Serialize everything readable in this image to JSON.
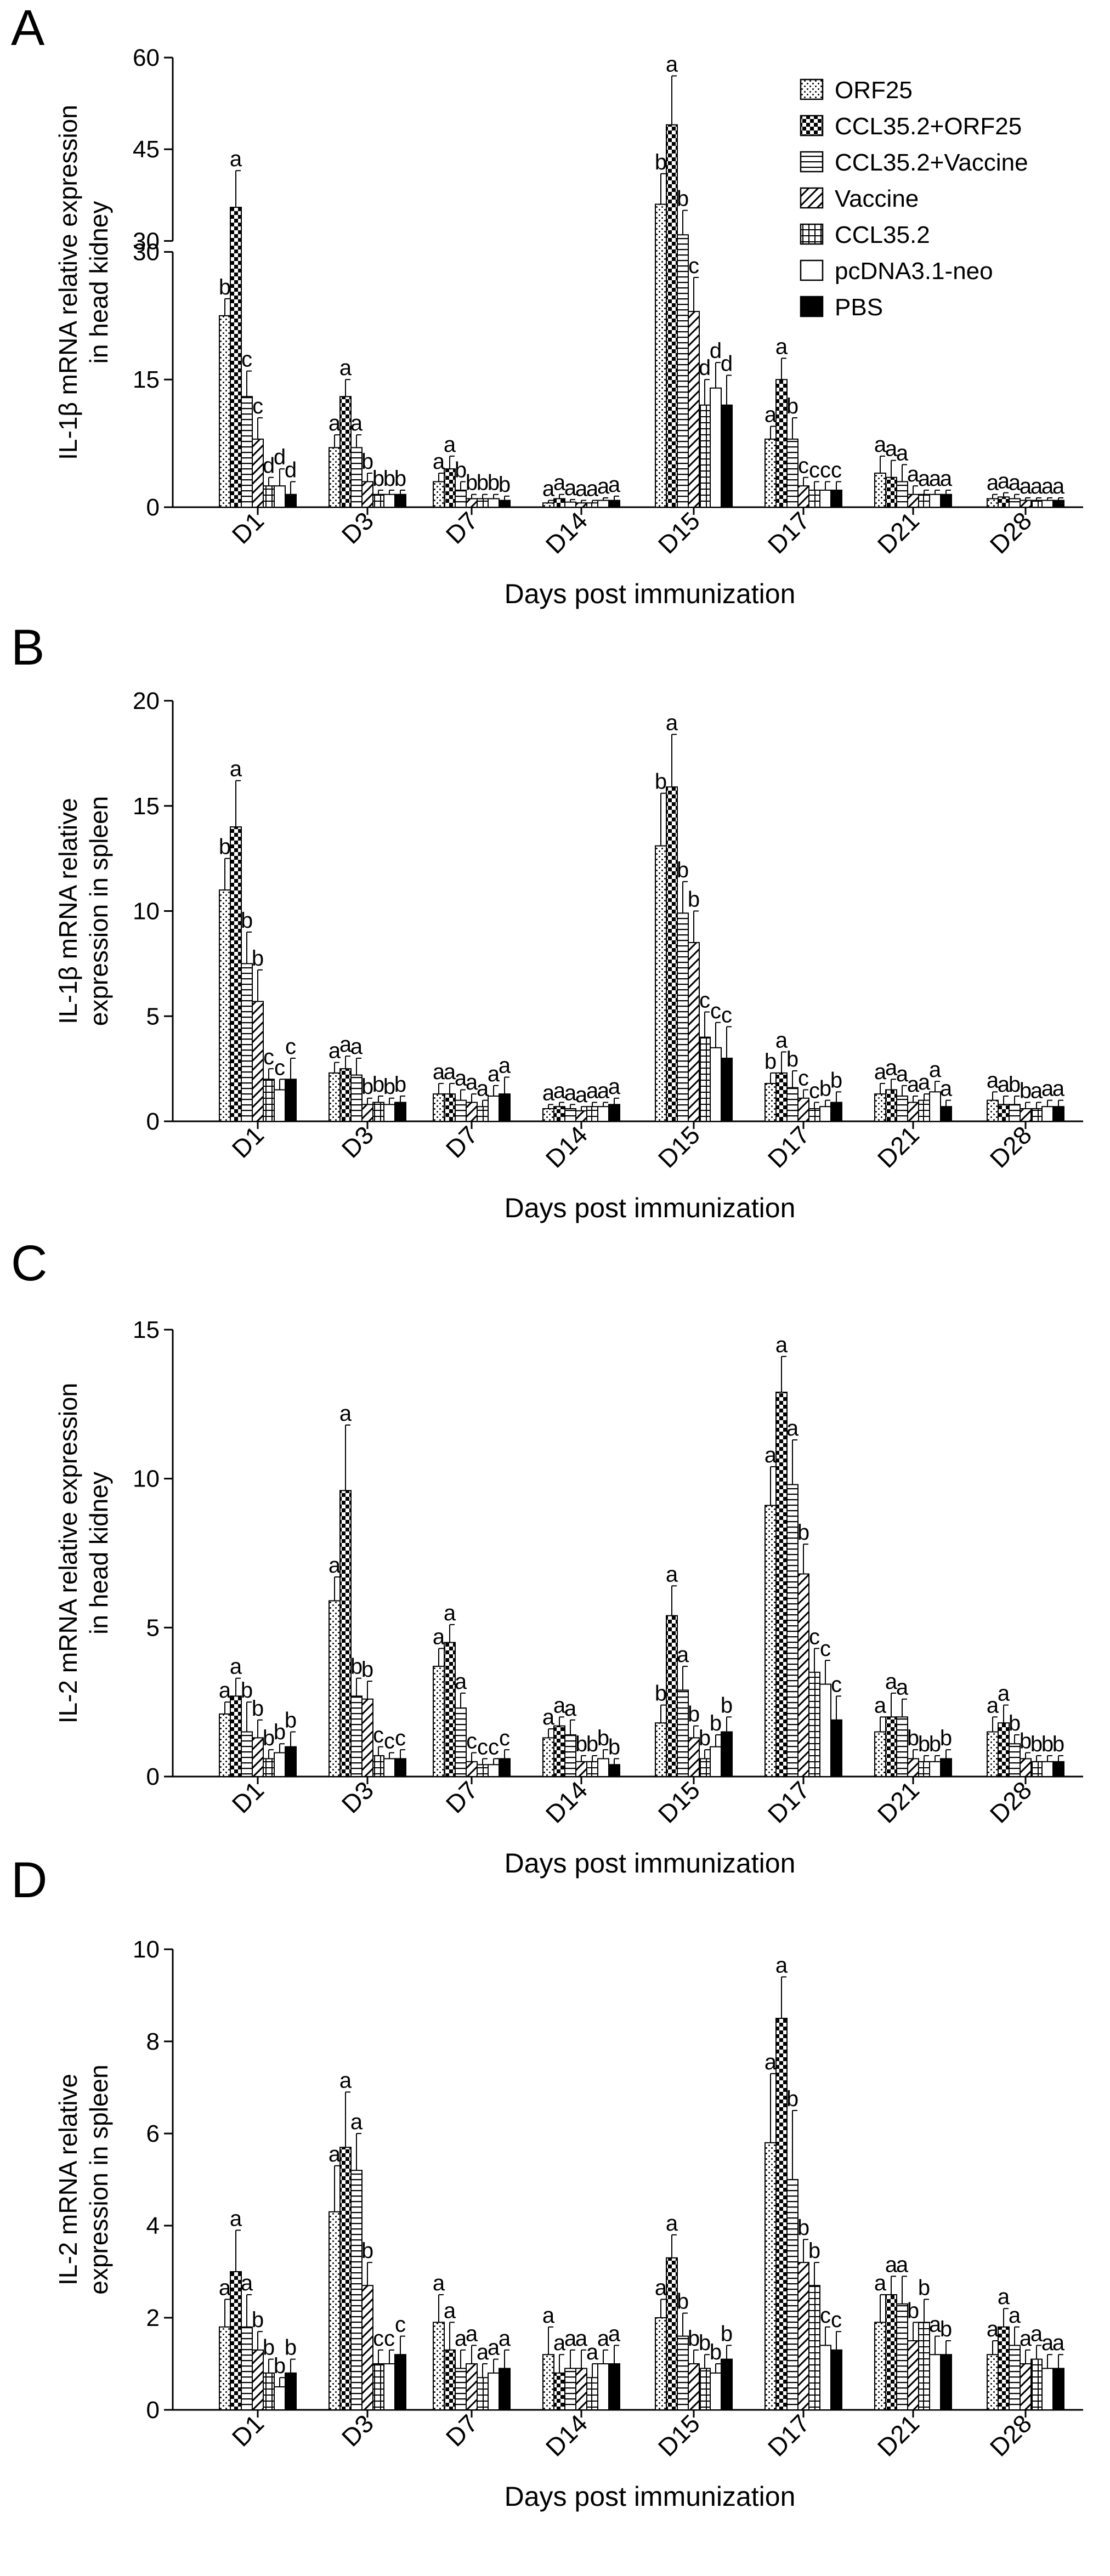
{
  "colors": {
    "ink": "#000000",
    "paper": "#ffffff"
  },
  "legend": [
    {
      "label": "ORF25",
      "pattern": "dots"
    },
    {
      "label": "CCL35.2+ORF25",
      "pattern": "checker"
    },
    {
      "label": "CCL35.2+Vaccine",
      "pattern": "hlines"
    },
    {
      "label": "Vaccine",
      "pattern": "diag"
    },
    {
      "label": "CCL35.2",
      "pattern": "grid"
    },
    {
      "label": "pcDNA3.1-neo",
      "pattern": "empty"
    },
    {
      "label": "PBS",
      "pattern": "solid"
    }
  ],
  "chart_data": [
    {
      "type": "bar",
      "panel": "A",
      "ylabel": [
        "IL-1β mRNA relative expression",
        "in head kidney"
      ],
      "xlabel": "Days post immunization",
      "categories": [
        "D1",
        "D3",
        "D7",
        "D14",
        "D15",
        "D17",
        "D21",
        "D28"
      ],
      "ylim": [
        0,
        60
      ],
      "axis_break": [
        30,
        30
      ],
      "yticks": [
        0,
        15,
        30,
        45,
        60
      ],
      "series": [
        {
          "name": "ORF25",
          "values": [
            22.5,
            7.0,
            3.0,
            0.5,
            36.0,
            8.0,
            4.0,
            1.0
          ],
          "errors": [
            2.0,
            1.5,
            1.0,
            0.3,
            5.0,
            1.5,
            2.0,
            0.5
          ],
          "labels": [
            "b",
            "a",
            "a",
            "a",
            "b",
            "a",
            "a",
            "a"
          ]
        },
        {
          "name": "CCL35.2+ORF25",
          "values": [
            35.5,
            13.0,
            4.5,
            1.0,
            49.0,
            15.0,
            3.5,
            1.2
          ],
          "errors": [
            6.0,
            2.0,
            1.5,
            0.5,
            8.0,
            2.5,
            2.0,
            0.5
          ],
          "labels": [
            "a",
            "a",
            "a",
            "a",
            "a",
            "a",
            "a",
            "a"
          ]
        },
        {
          "name": "CCL35.2+Vaccine",
          "values": [
            13.0,
            7.0,
            2.0,
            0.6,
            31.0,
            8.0,
            3.0,
            1.0
          ],
          "errors": [
            3.0,
            1.5,
            1.0,
            0.3,
            4.0,
            2.5,
            2.0,
            0.5
          ],
          "labels": [
            "c",
            "a",
            "b",
            "a",
            "b",
            "b",
            "a",
            "a"
          ]
        },
        {
          "name": "Vaccine",
          "values": [
            8.0,
            3.0,
            1.0,
            0.5,
            23.0,
            2.5,
            1.5,
            0.8
          ],
          "errors": [
            2.5,
            1.0,
            0.5,
            0.3,
            4.0,
            1.0,
            1.0,
            0.3
          ],
          "labels": [
            "c",
            "b",
            "b",
            "a",
            "c",
            "c",
            "a",
            "a"
          ]
        },
        {
          "name": "CCL35.2",
          "values": [
            2.5,
            1.5,
            1.0,
            0.5,
            12.0,
            2.0,
            1.5,
            0.8
          ],
          "errors": [
            1.0,
            0.5,
            0.5,
            0.3,
            3.0,
            1.0,
            0.5,
            0.3
          ],
          "labels": [
            "d",
            "b",
            "b",
            "a",
            "d",
            "c",
            "a",
            "a"
          ]
        },
        {
          "name": "pcDNA3.1-neo",
          "values": [
            2.5,
            1.5,
            1.0,
            0.8,
            14.0,
            2.0,
            1.5,
            0.8
          ],
          "errors": [
            2.0,
            0.5,
            0.5,
            0.3,
            3.0,
            1.0,
            0.5,
            0.3
          ],
          "labels": [
            "d",
            "b",
            "b",
            "a",
            "d",
            "c",
            "a",
            "a"
          ]
        },
        {
          "name": "PBS",
          "values": [
            1.5,
            1.5,
            0.8,
            0.8,
            12.0,
            2.0,
            1.5,
            0.8
          ],
          "errors": [
            1.5,
            0.5,
            0.5,
            0.5,
            3.5,
            1.0,
            0.5,
            0.3
          ],
          "labels": [
            "d",
            "b",
            "b",
            "a",
            "d",
            "c",
            "a",
            "a"
          ]
        }
      ]
    },
    {
      "type": "bar",
      "panel": "B",
      "ylabel": [
        "IL-1β mRNA relative",
        "expression in spleen"
      ],
      "xlabel": "Days post immunization",
      "categories": [
        "D1",
        "D3",
        "D7",
        "D14",
        "D15",
        "D17",
        "D21",
        "D28"
      ],
      "ylim": [
        0,
        20
      ],
      "yticks": [
        0,
        5,
        10,
        15,
        20
      ],
      "series": [
        {
          "name": "ORF25",
          "values": [
            11.0,
            2.3,
            1.3,
            0.6,
            13.1,
            1.8,
            1.3,
            1.0
          ],
          "errors": [
            1.5,
            0.5,
            0.5,
            0.2,
            2.5,
            0.5,
            0.5,
            0.4
          ],
          "labels": [
            "b",
            "a",
            "a",
            "a",
            "b",
            "b",
            "a",
            "a"
          ]
        },
        {
          "name": "CCL35.2+ORF25",
          "values": [
            14.0,
            2.5,
            1.3,
            0.7,
            15.9,
            2.3,
            1.5,
            0.8
          ],
          "errors": [
            2.2,
            0.6,
            0.5,
            0.2,
            2.5,
            1.0,
            0.5,
            0.4
          ],
          "labels": [
            "a",
            "a",
            "a",
            "a",
            "a",
            "a",
            "a",
            "a"
          ]
        },
        {
          "name": "CCL35.2+Vaccine",
          "values": [
            7.5,
            2.2,
            1.0,
            0.6,
            9.9,
            1.6,
            1.2,
            0.8
          ],
          "errors": [
            1.5,
            0.8,
            0.5,
            0.2,
            1.5,
            0.8,
            0.5,
            0.4
          ],
          "labels": [
            "b",
            "a",
            "a",
            "a",
            "b",
            "b",
            "a",
            "b"
          ]
        },
        {
          "name": "Vaccine",
          "values": [
            5.7,
            0.8,
            0.9,
            0.5,
            8.5,
            1.1,
            0.9,
            0.6
          ],
          "errors": [
            1.5,
            0.3,
            0.4,
            0.2,
            1.5,
            0.4,
            0.3,
            0.3
          ],
          "labels": [
            "b",
            "b",
            "a",
            "a",
            "b",
            "c",
            "a",
            "b"
          ]
        },
        {
          "name": "CCL35.2",
          "values": [
            2.0,
            0.9,
            0.7,
            0.7,
            4.0,
            0.6,
            1.0,
            0.6
          ],
          "errors": [
            0.5,
            0.3,
            0.3,
            0.2,
            1.2,
            0.3,
            0.3,
            0.3
          ],
          "labels": [
            "c",
            "b",
            "a",
            "a",
            "c",
            "c",
            "a",
            "a"
          ]
        },
        {
          "name": "pcDNA3.1-neo",
          "values": [
            1.5,
            0.8,
            1.2,
            0.7,
            3.5,
            0.7,
            1.4,
            0.7
          ],
          "errors": [
            0.5,
            0.3,
            0.5,
            0.2,
            1.2,
            0.3,
            0.5,
            0.3
          ],
          "labels": [
            "c",
            "b",
            "a",
            "a",
            "c",
            "b",
            "a",
            "a"
          ]
        },
        {
          "name": "PBS",
          "values": [
            2.0,
            0.9,
            1.3,
            0.8,
            3.0,
            0.9,
            0.7,
            0.7
          ],
          "errors": [
            1.0,
            0.3,
            0.8,
            0.3,
            1.5,
            0.5,
            0.3,
            0.3
          ],
          "labels": [
            "c",
            "b",
            "a",
            "a",
            "c",
            "b",
            "a",
            "a"
          ]
        }
      ]
    },
    {
      "type": "bar",
      "panel": "C",
      "ylabel": [
        "IL-2 mRNA relative expression",
        "in head kidney"
      ],
      "xlabel": "Days post immunization",
      "categories": [
        "D1",
        "D3",
        "D7",
        "D14",
        "D15",
        "D17",
        "D21",
        "D28"
      ],
      "ylim": [
        0,
        15
      ],
      "yticks": [
        0,
        5,
        10,
        15
      ],
      "series": [
        {
          "name": "ORF25",
          "values": [
            2.1,
            5.9,
            3.7,
            1.3,
            1.8,
            9.1,
            1.5,
            1.5
          ],
          "errors": [
            0.4,
            0.8,
            0.6,
            0.3,
            0.6,
            1.3,
            0.5,
            0.5
          ],
          "labels": [
            "a",
            "a",
            "a",
            "a",
            "b",
            "a",
            "a",
            "a"
          ]
        },
        {
          "name": "CCL35.2+ORF25",
          "values": [
            2.7,
            9.6,
            4.5,
            1.7,
            5.4,
            12.9,
            2.0,
            1.8
          ],
          "errors": [
            0.6,
            2.2,
            0.6,
            0.3,
            1.0,
            1.2,
            0.8,
            0.6
          ],
          "labels": [
            "a",
            "a",
            "a",
            "a",
            "a",
            "a",
            "a",
            "a"
          ]
        },
        {
          "name": "CCL35.2+Vaccine",
          "values": [
            1.5,
            2.7,
            2.3,
            1.4,
            2.9,
            9.8,
            2.0,
            1.1
          ],
          "errors": [
            1.0,
            0.6,
            0.5,
            0.5,
            0.8,
            1.5,
            0.6,
            0.3
          ],
          "labels": [
            "b",
            "b",
            "a",
            "a",
            "a",
            "a",
            "a",
            "b"
          ]
        },
        {
          "name": "Vaccine",
          "values": [
            1.3,
            2.6,
            0.5,
            0.5,
            1.3,
            6.8,
            0.6,
            0.6
          ],
          "errors": [
            0.6,
            0.6,
            0.3,
            0.2,
            0.4,
            1.0,
            0.3,
            0.2
          ],
          "labels": [
            "b",
            "b",
            "c",
            "b",
            "b",
            "b",
            "b",
            "b"
          ]
        },
        {
          "name": "CCL35.2",
          "values": [
            0.6,
            0.7,
            0.4,
            0.5,
            0.6,
            3.5,
            0.5,
            0.5
          ],
          "errors": [
            0.3,
            0.3,
            0.2,
            0.2,
            0.3,
            0.8,
            0.2,
            0.2
          ],
          "labels": [
            "b",
            "c",
            "c",
            "b",
            "b",
            "c",
            "b",
            "b"
          ]
        },
        {
          "name": "pcDNA3.1-neo",
          "values": [
            0.8,
            0.6,
            0.4,
            0.6,
            1.0,
            3.1,
            0.5,
            0.5
          ],
          "errors": [
            0.3,
            0.2,
            0.2,
            0.3,
            0.4,
            0.8,
            0.2,
            0.2
          ],
          "labels": [
            "b",
            "c",
            "c",
            "b",
            "b",
            "c",
            "b",
            "b"
          ]
        },
        {
          "name": "PBS",
          "values": [
            1.0,
            0.6,
            0.6,
            0.4,
            1.5,
            1.9,
            0.6,
            0.5
          ],
          "errors": [
            0.5,
            0.3,
            0.3,
            0.2,
            0.5,
            0.8,
            0.3,
            0.2
          ],
          "labels": [
            "b",
            "c",
            "c",
            "b",
            "b",
            "c",
            "b",
            "b"
          ]
        }
      ]
    },
    {
      "type": "bar",
      "panel": "D",
      "ylabel": [
        "IL-2 mRNA relative",
        "expression in spleen"
      ],
      "xlabel": "Days post immunization",
      "categories": [
        "D1",
        "D3",
        "D7",
        "D14",
        "D15",
        "D17",
        "D21",
        "D28"
      ],
      "ylim": [
        0,
        10
      ],
      "yticks": [
        0,
        2,
        4,
        6,
        8,
        10
      ],
      "series": [
        {
          "name": "ORF25",
          "values": [
            1.8,
            4.3,
            1.9,
            1.2,
            2.0,
            5.8,
            1.9,
            1.2
          ],
          "errors": [
            0.6,
            1.0,
            0.6,
            0.6,
            0.4,
            1.5,
            0.6,
            0.3
          ],
          "labels": [
            "a",
            "a",
            "a",
            "a",
            "a",
            "a",
            "a",
            "a"
          ]
        },
        {
          "name": "CCL35.2+ORF25",
          "values": [
            3.0,
            5.7,
            1.3,
            0.8,
            3.3,
            8.5,
            2.5,
            1.8
          ],
          "errors": [
            0.9,
            1.2,
            0.6,
            0.4,
            0.5,
            0.9,
            0.4,
            0.4
          ],
          "labels": [
            "a",
            "a",
            "a",
            "a",
            "a",
            "a",
            "a",
            "a"
          ]
        },
        {
          "name": "CCL35.2+Vaccine",
          "values": [
            1.8,
            5.2,
            0.9,
            0.9,
            1.6,
            5.0,
            2.3,
            1.4
          ],
          "errors": [
            0.7,
            0.8,
            0.4,
            0.4,
            0.5,
            1.5,
            0.6,
            0.4
          ],
          "labels": [
            "a",
            "a",
            "a",
            "a",
            "b",
            "b",
            "a",
            "a"
          ]
        },
        {
          "name": "Vaccine",
          "values": [
            1.3,
            2.7,
            1.0,
            0.9,
            1.0,
            3.2,
            1.5,
            1.0
          ],
          "errors": [
            0.4,
            0.5,
            0.4,
            0.4,
            0.3,
            0.5,
            0.4,
            0.3
          ],
          "labels": [
            "b",
            "b",
            "a",
            "a",
            "b",
            "b",
            "b",
            "a"
          ]
        },
        {
          "name": "CCL35.2",
          "values": [
            0.8,
            1.0,
            0.7,
            0.7,
            0.9,
            2.7,
            1.9,
            1.1
          ],
          "errors": [
            0.3,
            0.3,
            0.3,
            0.3,
            0.3,
            0.5,
            0.5,
            0.3
          ],
          "labels": [
            "b",
            "c",
            "a",
            "a",
            "b",
            "b",
            "b",
            "a"
          ]
        },
        {
          "name": "pcDNA3.1-neo",
          "values": [
            0.5,
            1.0,
            0.8,
            1.0,
            0.8,
            1.4,
            1.2,
            0.9
          ],
          "errors": [
            0.2,
            0.3,
            0.3,
            0.3,
            0.2,
            0.4,
            0.4,
            0.3
          ],
          "labels": [
            "b",
            "c",
            "a",
            "a",
            "b",
            "c",
            "a",
            "a"
          ]
        },
        {
          "name": "PBS",
          "values": [
            0.8,
            1.2,
            0.9,
            1.0,
            1.1,
            1.3,
            1.2,
            0.9
          ],
          "errors": [
            0.3,
            0.4,
            0.4,
            0.4,
            0.3,
            0.4,
            0.3,
            0.3
          ],
          "labels": [
            "b",
            "c",
            "a",
            "a",
            "b",
            "c",
            "b",
            "a"
          ]
        }
      ]
    }
  ]
}
